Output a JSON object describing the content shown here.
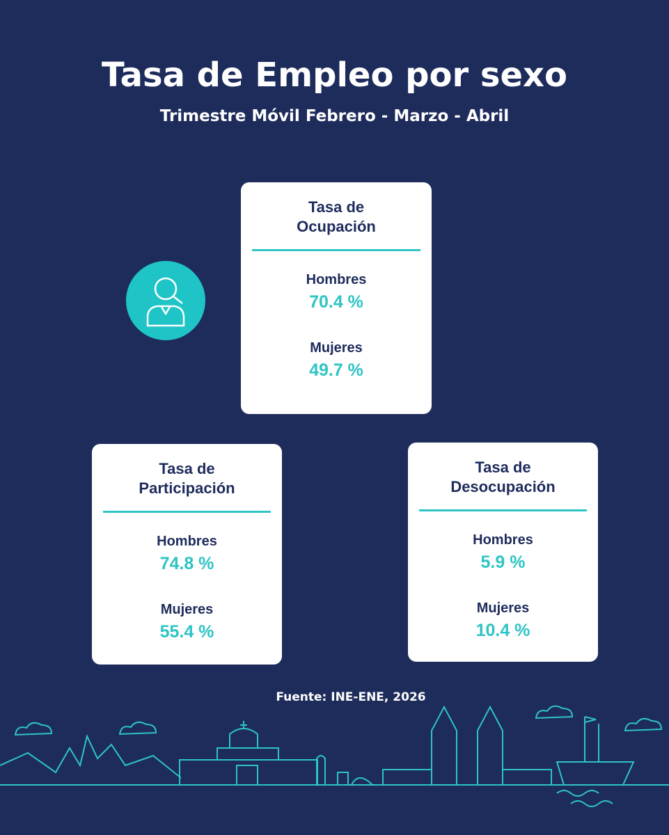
{
  "header": {
    "title": "Tasa de Empleo por sexo",
    "subtitle": "Trimestre Móvil Febrero - Marzo - Abril"
  },
  "cards": [
    {
      "title": "Tasa de Ocupación",
      "items": [
        {
          "label": "Hombres",
          "value": "70.4 %"
        },
        {
          "label": "Mujeres",
          "value": "49.7 %"
        }
      ]
    },
    {
      "title": "Tasa de Participación",
      "items": [
        {
          "label": "Hombres",
          "value": "74.8 %"
        },
        {
          "label": "Mujeres",
          "value": "55.4 %"
        }
      ]
    },
    {
      "title": "Tasa de Desocupación",
      "items": [
        {
          "label": "Hombres",
          "value": "5.9 %"
        },
        {
          "label": "Mujeres",
          "value": "10.4 %"
        }
      ]
    }
  ],
  "source": "Fuente: INE-ENE, 2026"
}
